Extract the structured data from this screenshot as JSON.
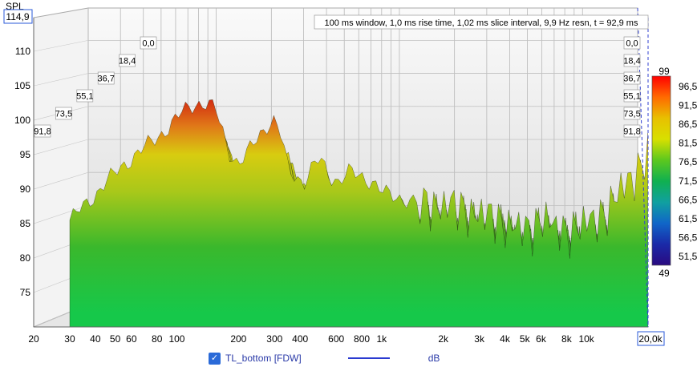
{
  "chart_data": {
    "type": "waterfall",
    "title": "100 ms window, 1,0 ms rise time, 1,02 ms slice interval, 9,9 Hz resn, t = 92,9 ms",
    "ylabel": "SPL",
    "y_max_readout": "114,9",
    "x_max_readout": "20,0k",
    "y_ticks": [
      "110",
      "105",
      "100",
      "95",
      "90",
      "85",
      "80",
      "75"
    ],
    "y_range": [
      70,
      114.9
    ],
    "x_scale": "log",
    "x_range": [
      20,
      20000
    ],
    "x_ticks": [
      {
        "value": 20,
        "label": "20"
      },
      {
        "value": 30,
        "label": "30"
      },
      {
        "value": 40,
        "label": "40"
      },
      {
        "value": 50,
        "label": "50"
      },
      {
        "value": 60,
        "label": "60"
      },
      {
        "value": 80,
        "label": "80"
      },
      {
        "value": 100,
        "label": "100"
      },
      {
        "value": 200,
        "label": "200"
      },
      {
        "value": 300,
        "label": "300"
      },
      {
        "value": 400,
        "label": "400"
      },
      {
        "value": 600,
        "label": "600"
      },
      {
        "value": 800,
        "label": "800"
      },
      {
        "value": 1000,
        "label": "1k"
      },
      {
        "value": 2000,
        "label": "2k"
      },
      {
        "value": 3000,
        "label": "3k"
      },
      {
        "value": 4000,
        "label": "4k"
      },
      {
        "value": 5000,
        "label": "5k"
      },
      {
        "value": 6000,
        "label": "6k"
      },
      {
        "value": 8000,
        "label": "8k"
      },
      {
        "value": 10000,
        "label": "10k"
      }
    ],
    "time_ticks_ms": [
      "0,0",
      "18,4",
      "36,7",
      "55,1",
      "73,5",
      "91,8"
    ],
    "colorbar_max": "99",
    "colorbar_min": "49",
    "colorbar_ticks": [
      "96,5",
      "91,5",
      "86,5",
      "81,5",
      "76,5",
      "71,5",
      "66,5",
      "61,5",
      "56,5",
      "51,5"
    ],
    "colorbar_colors": [
      "#ff0000",
      "#ff6a00",
      "#e8c000",
      "#d8e000",
      "#5cc81e",
      "#10b050",
      "#10a0a0",
      "#1066c8",
      "#1a2aa8",
      "#2a0a80"
    ],
    "legend": {
      "checked": true,
      "series_name": "TL_bottom [FDW]",
      "series_color": "#2a3ad0",
      "unit": "dB"
    },
    "envelope": {
      "freq": [
        30,
        38,
        45,
        55,
        66,
        80,
        95,
        105,
        115,
        125,
        140,
        155,
        165,
        180,
        200,
        220,
        240,
        260,
        280,
        300,
        320,
        350,
        380,
        420,
        460,
        500,
        560,
        620,
        700,
        800,
        900,
        1000,
        1200,
        1400,
        1700,
        2000,
        2400,
        2800,
        3200,
        3600,
        4000,
        4400,
        5000,
        5500,
        6000,
        6500,
        7000,
        7500,
        8000,
        9000,
        10000,
        11000,
        12000,
        13000,
        14000,
        15000,
        16000,
        17000,
        18000,
        19000,
        20000
      ],
      "spl": [
        85.5,
        88.5,
        91,
        93.5,
        95.5,
        97.5,
        99.5,
        101,
        102,
        102.5,
        102.3,
        101.5,
        99,
        95.5,
        93.5,
        95,
        97,
        98.5,
        99.5,
        99.8,
        98,
        93,
        92,
        91,
        93,
        94.5,
        92,
        91,
        92.5,
        92,
        91,
        89.5,
        89,
        88,
        88,
        87.5,
        87.5,
        86.5,
        86,
        86,
        85,
        84.5,
        84,
        84.5,
        86,
        85.5,
        84,
        84,
        84,
        84.5,
        85,
        85.5,
        86.5,
        87.5,
        89,
        90,
        91,
        92,
        93,
        94.5,
        95.5
      ]
    }
  }
}
